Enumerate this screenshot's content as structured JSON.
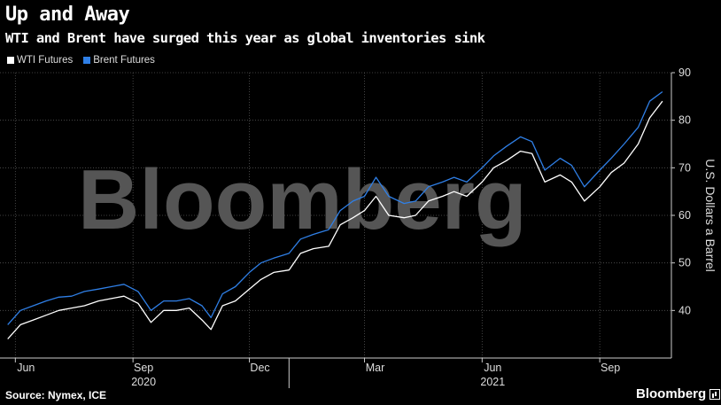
{
  "header": {
    "title": "Up and Away",
    "subtitle": "WTI and Brent have surged this year as global inventories sink"
  },
  "legend": [
    {
      "label": "WTI Futures",
      "color": "#ffffff"
    },
    {
      "label": "Brent Futures",
      "color": "#2f7fe6"
    }
  ],
  "footer": {
    "source": "Source: Nymex, ICE",
    "brand": "Bloomberg"
  },
  "watermark": "Bloomberg",
  "chart_data": {
    "type": "line",
    "title": "Up and Away",
    "ylabel": "U.S. Dollars a Barrel",
    "ylim": [
      30,
      90
    ],
    "yticks": [
      40,
      50,
      60,
      70,
      80,
      90
    ],
    "x_ticks": [
      {
        "label": "Jun",
        "month": 0
      },
      {
        "label": "Sep",
        "month": 3
      },
      {
        "label": "Dec",
        "month": 6
      },
      {
        "label": "Mar",
        "month": 9
      },
      {
        "label": "Jun",
        "month": 12
      },
      {
        "label": "Sep",
        "month": 15
      }
    ],
    "x_year_labels": [
      {
        "label": "2020",
        "month": 3
      },
      {
        "label": "2021",
        "month": 12
      }
    ],
    "x": [
      "2020-05-26",
      "2020-06-05",
      "2020-06-15",
      "2020-06-25",
      "2020-07-05",
      "2020-07-15",
      "2020-07-25",
      "2020-08-05",
      "2020-08-15",
      "2020-08-25",
      "2020-09-05",
      "2020-09-15",
      "2020-09-25",
      "2020-10-05",
      "2020-10-15",
      "2020-10-25",
      "2020-11-01",
      "2020-11-10",
      "2020-11-20",
      "2020-12-01",
      "2020-12-10",
      "2020-12-20",
      "2021-01-01",
      "2021-01-10",
      "2021-01-20",
      "2021-02-01",
      "2021-02-10",
      "2021-02-20",
      "2021-03-01",
      "2021-03-10",
      "2021-03-20",
      "2021-04-01",
      "2021-04-10",
      "2021-04-20",
      "2021-05-01",
      "2021-05-10",
      "2021-05-20",
      "2021-06-01",
      "2021-06-10",
      "2021-06-20",
      "2021-07-01",
      "2021-07-10",
      "2021-07-20",
      "2021-08-01",
      "2021-08-10",
      "2021-08-20",
      "2021-09-01",
      "2021-09-10",
      "2021-09-20",
      "2021-10-01",
      "2021-10-10",
      "2021-10-20"
    ],
    "series": [
      {
        "name": "WTI Futures",
        "color": "#ffffff",
        "values": [
          34,
          37,
          38,
          39,
          40,
          40.5,
          41,
          42,
          42.5,
          43,
          41.5,
          37.5,
          40,
          40,
          40.5,
          38,
          36,
          41,
          42,
          44.5,
          46.5,
          48,
          48.5,
          52,
          53,
          53.5,
          58,
          59.5,
          61,
          64,
          60,
          59.5,
          60,
          63,
          64,
          65,
          64,
          67,
          70,
          71.5,
          73.5,
          73,
          67,
          68.5,
          67,
          63,
          66,
          69,
          71,
          75,
          80.5,
          84
        ]
      },
      {
        "name": "Brent Futures",
        "color": "#2f7fe6",
        "values": [
          37,
          40,
          41,
          42,
          42.8,
          43,
          44,
          44.5,
          45,
          45.5,
          44,
          40,
          42,
          42,
          42.5,
          41,
          38.5,
          43.5,
          45,
          48,
          50,
          51,
          52,
          55,
          56,
          57,
          61,
          63,
          64,
          68,
          64,
          62.5,
          63,
          66,
          67,
          68,
          67,
          70,
          72.5,
          74.5,
          76.5,
          75.5,
          69.5,
          72,
          70.5,
          66,
          69.5,
          72,
          75,
          78.5,
          84,
          86
        ]
      }
    ]
  }
}
